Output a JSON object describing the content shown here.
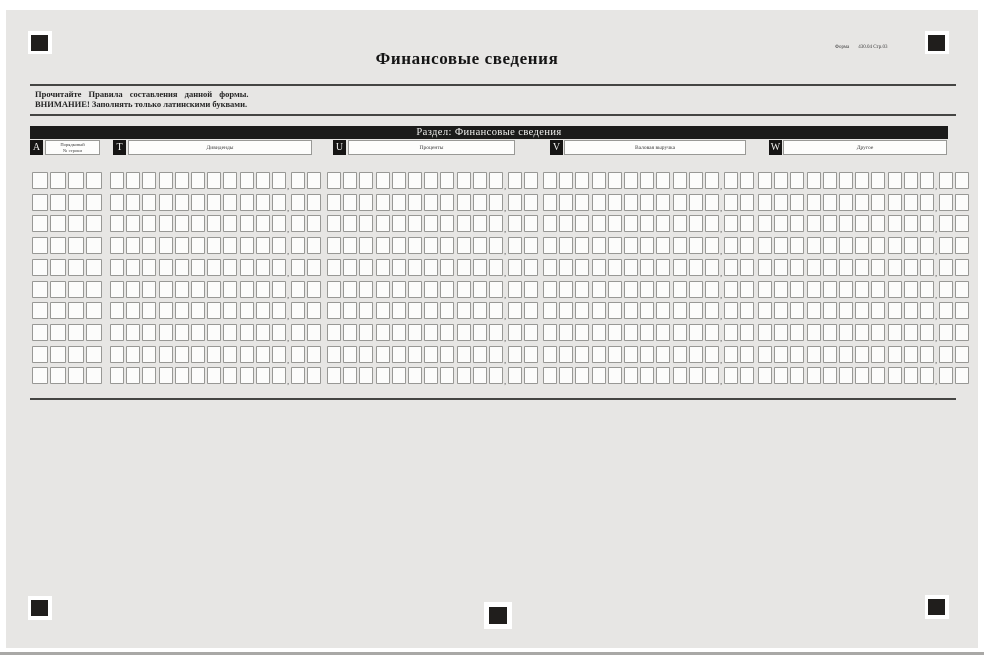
{
  "page": {
    "title": "Финансовые сведения",
    "form_ref": {
      "label": "Форма",
      "number": "430.04 Стр.03"
    },
    "instructions": [
      "Прочитайте Правила составления данной формы.",
      "ВНИМАНИЕ! Заполнять только латинскими буквами."
    ],
    "section_title": "Раздел: Финансовые сведения"
  },
  "columns": [
    {
      "letter": "A",
      "label_lines": [
        "Порядковый",
        "№ строки"
      ],
      "type": "index",
      "cells": 4
    },
    {
      "letter": "T",
      "label_lines": [
        "Дивиденды"
      ],
      "type": "amount",
      "int_cells": 11,
      "dec_cells": 2
    },
    {
      "letter": "U",
      "label_lines": [
        "Проценты"
      ],
      "type": "amount",
      "int_cells": 11,
      "dec_cells": 2
    },
    {
      "letter": "V",
      "label_lines": [
        "Валовая выручка"
      ],
      "type": "amount",
      "int_cells": 11,
      "dec_cells": 2
    },
    {
      "letter": "W",
      "label_lines": [
        "Другое"
      ],
      "type": "amount",
      "int_cells": 11,
      "dec_cells": 2
    }
  ],
  "grid": {
    "rows": 10,
    "decimal_separator": ",",
    "cell_value": ""
  },
  "colors": {
    "page_bg": "#e7e6e4",
    "bar_bg": "#1b1b1a",
    "box_border": "#989895",
    "rule": "#454543",
    "mark": "#201e1c"
  }
}
